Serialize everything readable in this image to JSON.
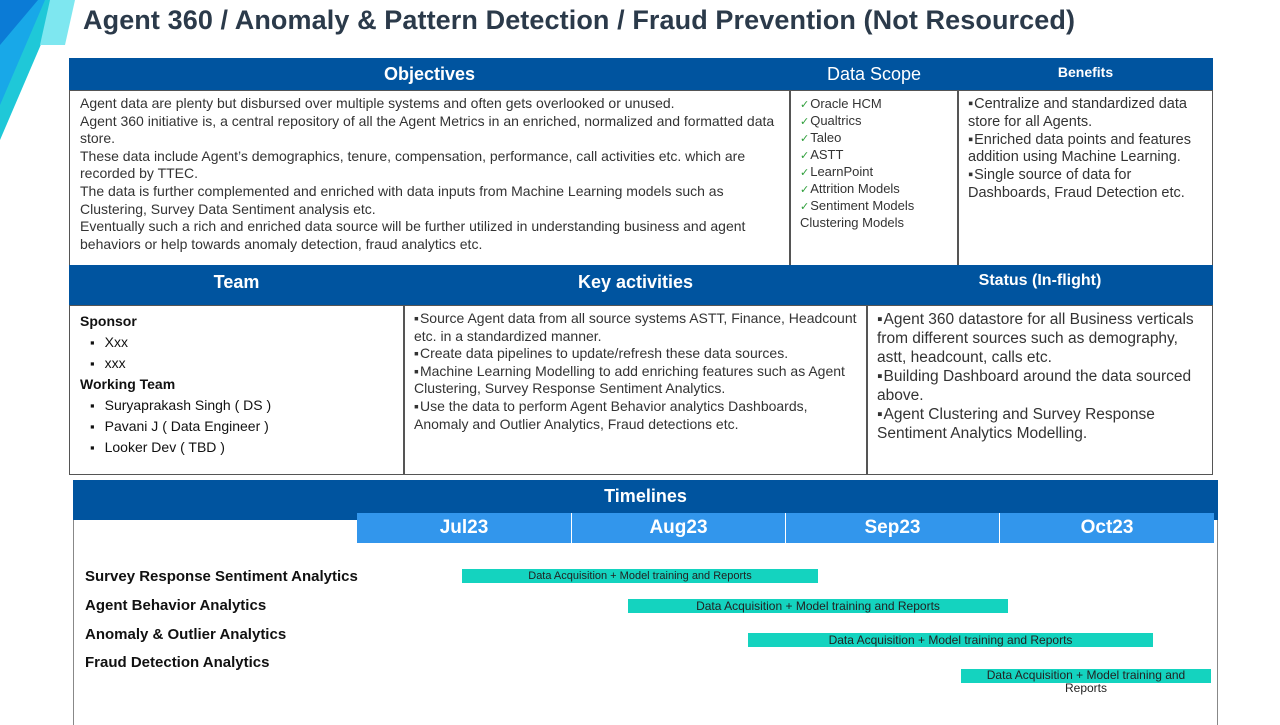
{
  "title": "Agent 360 / Anomaly & Pattern Detection / Fraud Prevention (Not Resourced)",
  "colors": {
    "header": "#00549f",
    "month": "#3296ec",
    "bar": "#14d3bf",
    "accent_cyan": "#19c7f0"
  },
  "objectives": {
    "header": "Objectives",
    "paragraphs": [
      "Agent data are plenty but disbursed over multiple systems and often gets overlooked or unused.",
      "Agent 360 initiative is, a central repository of all the Agent Metrics in an enriched, normalized and formatted data store.",
      "These data include Agent’s demographics, tenure, compensation, performance, call activities etc. which are recorded by TTEC.",
      "The data is further complemented and enriched with data inputs from Machine Learning models such as Clustering, Survey Data Sentiment analysis etc.",
      "Eventually such a rich and enriched data source will be further utilized in understanding business and agent behaviors or help towards anomaly detection, fraud analytics etc."
    ]
  },
  "data_scope": {
    "header": "Data Scope",
    "items": [
      "Oracle HCM",
      "Qualtrics",
      "Taleo",
      "ASTT",
      "LearnPoint",
      "Attrition Models",
      "Sentiment Models"
    ],
    "tail": "Clustering Models"
  },
  "benefits": {
    "header": "Benefits",
    "items": [
      "Centralize and standardized data store for all Agents.",
      "Enriched data points and features addition using Machine Learning.",
      "Single source of data for Dashboards, Fraud Detection etc."
    ]
  },
  "team": {
    "header": "Team",
    "sponsor_label": "Sponsor",
    "sponsors": [
      "Xxx",
      "xxx"
    ],
    "working_label": "Working Team",
    "members": [
      "Suryaprakash Singh ( DS )",
      "Pavani J ( Data Engineer )",
      "Looker Dev ( TBD )"
    ]
  },
  "key_activities": {
    "header": "Key activities",
    "items": [
      "Source Agent data from all source systems ASTT, Finance, Headcount etc. in a standardized manner.",
      "Create data pipelines to update/refresh these data sources.",
      "Machine Learning Modelling to add enriching features such as Agent Clustering, Survey Response Sentiment Analytics.",
      "Use the data to perform Agent Behavior analytics Dashboards, Anomaly and Outlier Analytics, Fraud detections etc."
    ]
  },
  "status": {
    "header": "Status (In-flight)",
    "items": [
      "Agent 360 datastore for all Business verticals from different sources such as demography, astt, headcount, calls etc.",
      "Building Dashboard around the data sourced above.",
      "Agent Clustering and Survey Response Sentiment Analytics Modelling."
    ]
  },
  "timelines": {
    "header": "Timelines",
    "months": [
      "Jul23",
      "Aug23",
      "Sep23",
      "Oct23"
    ],
    "rows": [
      {
        "label": "Survey Response Sentiment Analytics",
        "bar": "Data Acquisition + Model training and Reports"
      },
      {
        "label": "Agent Behavior Analytics",
        "bar": "Data Acquisition + Model training and Reports"
      },
      {
        "label": "Anomaly & Outlier Analytics",
        "bar": "Data Acquisition + Model training and Reports"
      },
      {
        "label": "Fraud Detection Analytics",
        "bar": "Data Acquisition + Model training and Reports"
      }
    ]
  }
}
